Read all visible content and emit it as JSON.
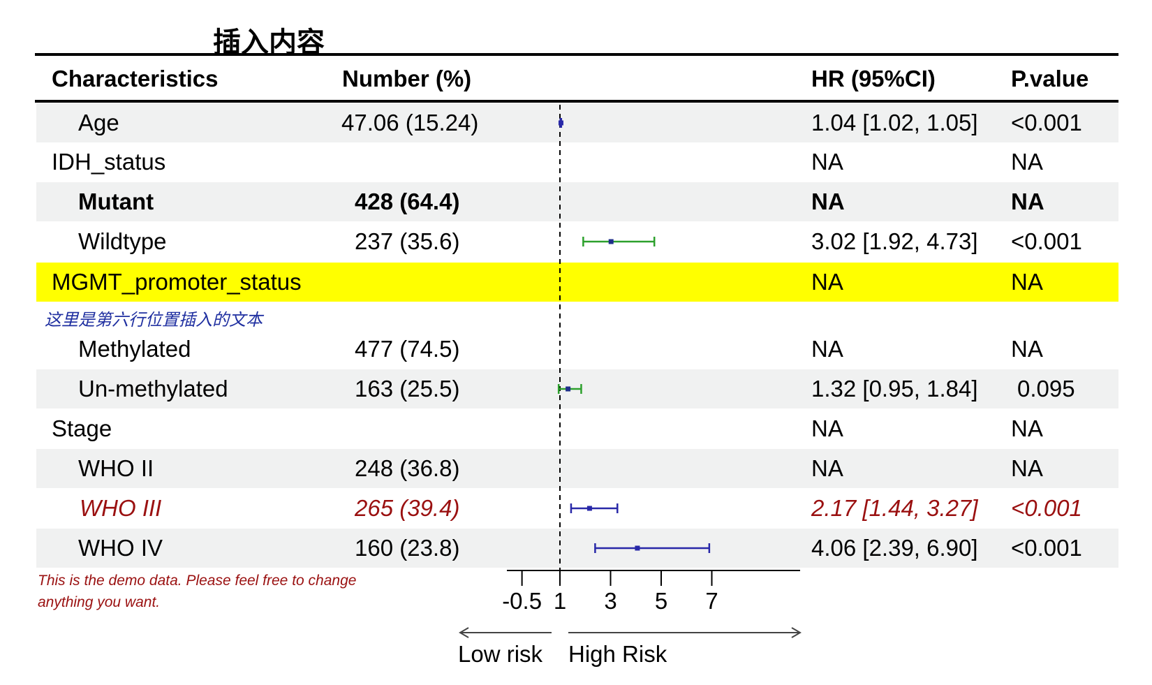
{
  "title": "插入内容",
  "headers": {
    "characteristics": "Characteristics",
    "number": "Number (%)",
    "hr": "HR (95%CI)",
    "pvalue": "P.value"
  },
  "rows": [
    {
      "label": "Age",
      "number": "47.06 (15.24)",
      "hr_text": "1.04 [1.02, 1.05]",
      "pvalue": "<0.001"
    },
    {
      "label": "IDH_status",
      "number": "",
      "hr_text": "NA",
      "pvalue": "NA"
    },
    {
      "label": "Mutant",
      "number": "428 (64.4)",
      "hr_text": "NA",
      "pvalue": "NA"
    },
    {
      "label": "Wildtype",
      "number": "237 (35.6)",
      "hr_text": "3.02 [1.92, 4.73]",
      "pvalue": "<0.001"
    },
    {
      "label": "MGMT_promoter_status",
      "number": "",
      "hr_text": "NA",
      "pvalue": "NA"
    },
    {
      "label": "Methylated",
      "number": "477 (74.5)",
      "hr_text": "NA",
      "pvalue": "NA"
    },
    {
      "label": "Un-methylated",
      "number": "163 (25.5)",
      "hr_text": "1.32 [0.95, 1.84]",
      "pvalue": "0.095"
    },
    {
      "label": "Stage",
      "number": "",
      "hr_text": "NA",
      "pvalue": "NA"
    },
    {
      "label": "WHO II",
      "number": "248 (36.8)",
      "hr_text": "NA",
      "pvalue": "NA"
    },
    {
      "label": "WHO III",
      "number": "265 (39.4)",
      "hr_text": "2.17 [1.44, 3.27]",
      "pvalue": "<0.001"
    },
    {
      "label": "WHO IV",
      "number": "160 (23.8)",
      "hr_text": "4.06 [2.39, 6.90]",
      "pvalue": "<0.001"
    }
  ],
  "inserted_note": "这里是第六行位置插入的文本",
  "footnote": "This is the demo data. Please feel free to change anything you want.",
  "axis": {
    "low_label": "Low risk",
    "high_label": "High Risk"
  },
  "colors": {
    "ci_green": "#2ca02c",
    "ci_blue": "#2828a8",
    "highlight_red": "#9a1010",
    "highlight_yellow": "#ffff00",
    "shade": "#f0f1f1"
  },
  "chart_data": {
    "type": "forest",
    "reference_line": 1,
    "xlim": [
      -0.5,
      8
    ],
    "ticks": [
      -0.5,
      1,
      3,
      5,
      7
    ],
    "tick_labels": [
      "-0.5",
      "1",
      "3",
      "5",
      "7"
    ],
    "points": [
      {
        "label": "Age",
        "hr": 1.04,
        "lower": 1.02,
        "upper": 1.05,
        "color": "#2828a8"
      },
      {
        "label": "Wildtype",
        "hr": 3.02,
        "lower": 1.92,
        "upper": 4.73,
        "color": "#2ca02c"
      },
      {
        "label": "Un-methylated",
        "hr": 1.32,
        "lower": 0.95,
        "upper": 1.84,
        "color": "#2ca02c"
      },
      {
        "label": "WHO III",
        "hr": 2.17,
        "lower": 1.44,
        "upper": 3.27,
        "color": "#2828a8"
      },
      {
        "label": "WHO IV",
        "hr": 4.06,
        "lower": 2.39,
        "upper": 6.9,
        "color": "#2828a8"
      }
    ]
  }
}
